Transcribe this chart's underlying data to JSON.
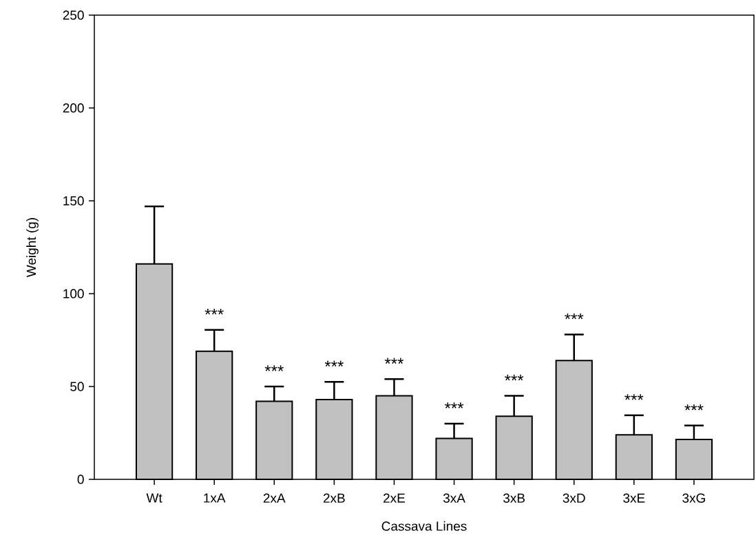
{
  "chart_data": {
    "type": "bar",
    "xlabel": "Cassava Lines",
    "ylabel": "Weight (g)",
    "categories": [
      "Wt",
      "1xA",
      "2xA",
      "2xB",
      "2xE",
      "3xA",
      "3xB",
      "3xD",
      "3xE",
      "3xG"
    ],
    "values": [
      116,
      69,
      42,
      43,
      45,
      22,
      34,
      64,
      24,
      21.5
    ],
    "errors": [
      [
        116,
        147
      ],
      [
        69,
        80.5
      ],
      [
        42,
        50
      ],
      [
        43,
        52.5
      ],
      [
        45,
        54
      ],
      [
        22,
        30
      ],
      [
        34,
        45
      ],
      [
        64,
        78
      ],
      [
        24,
        34.5
      ],
      [
        21.5,
        29
      ]
    ],
    "color": "#c0c0c0",
    "ylim": [
      0,
      250
    ],
    "yticks": [
      0,
      50,
      100,
      150,
      200,
      250
    ],
    "annotations": [
      "***",
      "***",
      "***",
      "***",
      "***",
      "***",
      "***",
      "***",
      "***"
    ]
  }
}
